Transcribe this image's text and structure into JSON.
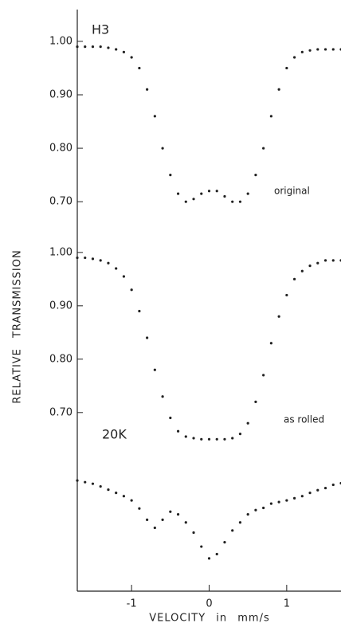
{
  "chart_data": [
    {
      "type": "scatter",
      "ylabel": "RELATIVE TRANSMISSION",
      "annotations": [
        "H3",
        "original"
      ],
      "x": [
        -1.7,
        -1.6,
        -1.5,
        -1.4,
        -1.3,
        -1.2,
        -1.1,
        -1.0,
        -0.9,
        -0.8,
        -0.7,
        -0.6,
        -0.5,
        -0.4,
        -0.3,
        -0.2,
        -0.1,
        0,
        0.1,
        0.2,
        0.3,
        0.4,
        0.5,
        0.6,
        0.7,
        0.8,
        0.9,
        1.0,
        1.1,
        1.2,
        1.3,
        1.4,
        1.5,
        1.6,
        1.7
      ],
      "values": [
        0.99,
        0.99,
        0.99,
        0.99,
        0.988,
        0.985,
        0.98,
        0.97,
        0.95,
        0.91,
        0.86,
        0.8,
        0.75,
        0.715,
        0.7,
        0.705,
        0.715,
        0.72,
        0.72,
        0.71,
        0.7,
        0.7,
        0.715,
        0.75,
        0.8,
        0.86,
        0.91,
        0.95,
        0.97,
        0.98,
        0.983,
        0.985,
        0.985,
        0.985,
        0.985
      ],
      "color": "#222222",
      "xlim": [
        -1.7,
        1.7
      ],
      "ylim": [
        0.66,
        1.055
      ],
      "yticks": [
        {
          "value": 1.0,
          "label": "1.00"
        },
        {
          "value": 0.9,
          "label": "0.90"
        },
        {
          "value": 0.8,
          "label": "0.80"
        },
        {
          "value": 0.7,
          "label": "0.70"
        }
      ]
    },
    {
      "type": "scatter",
      "annotations": [
        "as rolled",
        "20K"
      ],
      "x": [
        -1.7,
        -1.6,
        -1.5,
        -1.4,
        -1.3,
        -1.2,
        -1.1,
        -1.0,
        -0.9,
        -0.8,
        -0.7,
        -0.6,
        -0.5,
        -0.4,
        -0.3,
        -0.2,
        -0.1,
        0,
        0.1,
        0.2,
        0.3,
        0.4,
        0.5,
        0.6,
        0.7,
        0.8,
        0.9,
        1.0,
        1.1,
        1.2,
        1.3,
        1.4,
        1.5,
        1.6,
        1.7
      ],
      "values": [
        0.99,
        0.99,
        0.988,
        0.985,
        0.98,
        0.97,
        0.955,
        0.93,
        0.89,
        0.84,
        0.78,
        0.73,
        0.69,
        0.665,
        0.655,
        0.652,
        0.65,
        0.65,
        0.65,
        0.65,
        0.652,
        0.66,
        0.68,
        0.72,
        0.77,
        0.83,
        0.88,
        0.92,
        0.95,
        0.965,
        0.975,
        0.98,
        0.985,
        0.985,
        0.985
      ],
      "color": "#222222",
      "xlim": [
        -1.7,
        1.7
      ],
      "ylim": [
        0.637,
        1.055
      ],
      "yticks": [
        {
          "value": 1.0,
          "label": "1.00"
        },
        {
          "value": 0.9,
          "label": "0.90"
        },
        {
          "value": 0.8,
          "label": "0.80"
        },
        {
          "value": 0.7,
          "label": "0.70"
        }
      ]
    },
    {
      "type": "scatter",
      "xlabel": "VELOCITY in mm/s",
      "x": [
        -1.7,
        -1.6,
        -1.5,
        -1.4,
        -1.3,
        -1.2,
        -1.1,
        -1.0,
        -0.9,
        -0.8,
        -0.7,
        -0.6,
        -0.5,
        -0.4,
        -0.3,
        -0.2,
        -0.1,
        0,
        0.1,
        0.2,
        0.3,
        0.4,
        0.5,
        0.6,
        0.7,
        0.8,
        0.9,
        1.0,
        1.1,
        1.2,
        1.3,
        1.4,
        1.5,
        1.6,
        1.7
      ],
      "values": [
        0.986,
        0.983,
        0.98,
        0.975,
        0.969,
        0.963,
        0.957,
        0.949,
        0.934,
        0.913,
        0.898,
        0.913,
        0.928,
        0.923,
        0.908,
        0.889,
        0.863,
        0.841,
        0.849,
        0.871,
        0.893,
        0.908,
        0.923,
        0.931,
        0.935,
        0.943,
        0.946,
        0.949,
        0.953,
        0.957,
        0.963,
        0.968,
        0.972,
        0.978,
        0.981
      ],
      "color": "#222222",
      "xlim": [
        -1.7,
        1.7
      ],
      "ylim": [
        0.78,
        1.05
      ],
      "xticks": [
        -1,
        0,
        1
      ]
    }
  ]
}
